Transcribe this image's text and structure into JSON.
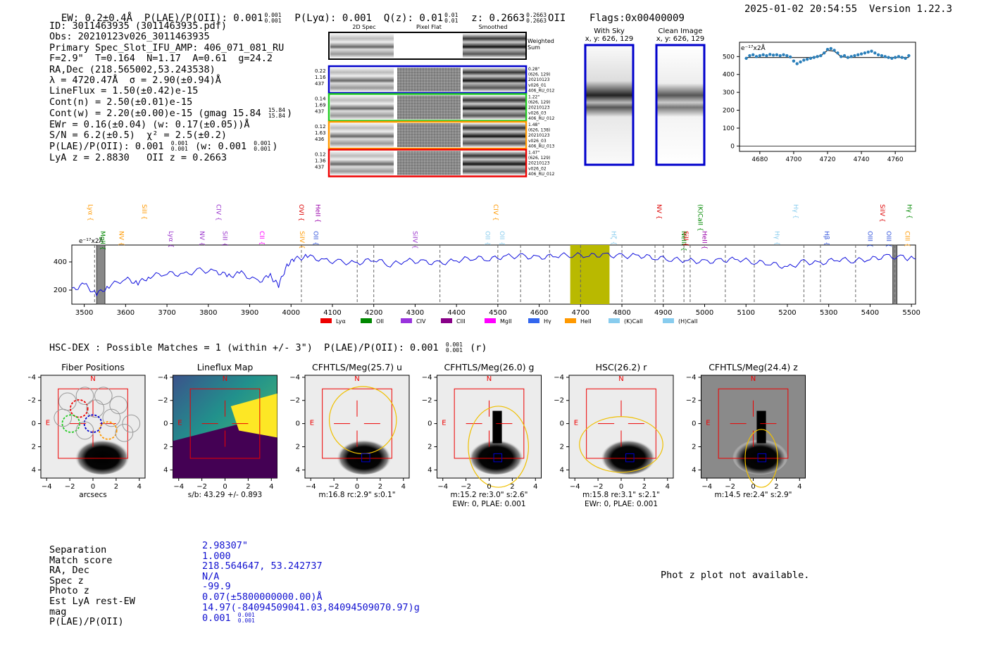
{
  "header": {
    "ew_label": "EW: 0.2±0.4Å",
    "plae_label": "P(LAE)/P(OII): 0.001",
    "plae_hi": "0.001",
    "plae_lo": "0.001",
    "plya_label": "P(Lyα): 0.001",
    "qz_label": "Q(z): 0.01",
    "qz_hi": "0.01",
    "qz_lo": "0.01",
    "z_label": "z: 0.2663",
    "z_hi": "0.2663",
    "z_lo": "0.2663",
    "z_line": "OII",
    "flags": "Flags:0x00400009",
    "datetime": "2025-01-02 20:54:55",
    "version": "Version 1.22.3"
  },
  "info": {
    "id": "ID: 3011463935 (3011463935.pdf)",
    "obs": "Obs: 20210123v026_3011463935",
    "primary": "Primary Spec_Slot_IFU_AMP: 406_071_081_RU",
    "fline": "F=2.9\"  T=0.164  N=1.17  A=0.61  g=24.2",
    "radec": "RA,Dec (218.565002,53.243538)",
    "lambda": "λ = 4720.47Å  σ = 2.90(±0.94)Å",
    "lineflux": "LineFlux = 1.50(±0.42)e-15",
    "contn": "Cont(n) = 2.50(±0.01)e-15",
    "contw": "Cont(w) = 2.20(±0.00)e-15 (gmag 15.84",
    "contw_hi": "15.84",
    "contw_lo": "15.84",
    "ewr": "EWr = 0.16(±0.04) (w: 0.17(±0.05))Å",
    "sn": "S/N = 6.2(±0.5)  χ² = 2.5(±0.2)",
    "plae": "P(LAE)/P(OII): 0.001",
    "plae_hi": "0.001",
    "plae_lo": "0.001",
    "plae_w": "(w: 0.001",
    "plae_w_hi": "0.001",
    "plae_w_lo": "0.001",
    "lyaz": "LyA z = 2.8830   OII z = 0.2663"
  },
  "cutouts": {
    "col_2d": "2D Spec",
    "col_flat": "Pixel Flat",
    "col_smooth": "Smoothed",
    "weighted_label": "Weighted",
    "weighted_label2": "Sum",
    "rows": [
      {
        "left": [
          "0.22",
          "1.16",
          "437"
        ],
        "right": [
          "0.28\"",
          "(626, 129)",
          "20210123",
          "v026_01",
          "406_RU_012"
        ],
        "color": "#0000cc"
      },
      {
        "left": [
          "0.14",
          "1.69",
          "437"
        ],
        "right": [
          "1.22\"",
          "(626, 129)",
          "20210123",
          "v026_03",
          "406_RU_012"
        ],
        "color": "#22cc22"
      },
      {
        "left": [
          "0.12",
          "1.63",
          "436"
        ],
        "right": [
          "1.48\"",
          "(626, 138)",
          "20210123",
          "v026_03",
          "406_RU_013"
        ],
        "color": "#ff9900"
      },
      {
        "left": [
          "0.12",
          "1.36",
          "437"
        ],
        "right": [
          "1.47\"",
          "(626, 129)",
          "20210123",
          "v026_02",
          "406_RU_012"
        ],
        "color": "#ee0000"
      }
    ],
    "with_sky": "With Sky",
    "with_sky_xy": "x, y: 626, 129",
    "clean": "Clean Image",
    "clean_xy": "x, y: 626, 129"
  },
  "chart_data": [
    {
      "type": "scatter",
      "title": "",
      "unit_label": "e⁻¹⁷x2Å",
      "xlim": [
        4668,
        4772
      ],
      "ylim": [
        -30,
        580
      ],
      "xticks": [
        4680,
        4700,
        4720,
        4740,
        4760
      ],
      "yticks": [
        0,
        100,
        200,
        300,
        400,
        500
      ],
      "x": [
        4672,
        4674,
        4676,
        4678,
        4680,
        4682,
        4684,
        4686,
        4688,
        4690,
        4692,
        4694,
        4696,
        4698,
        4700,
        4702,
        4704,
        4706,
        4708,
        4710,
        4712,
        4714,
        4716,
        4718,
        4720,
        4722,
        4724,
        4726,
        4728,
        4730,
        4732,
        4734,
        4736,
        4738,
        4740,
        4742,
        4744,
        4746,
        4748,
        4750,
        4752,
        4754,
        4756,
        4758,
        4760,
        4762,
        4764,
        4766,
        4768
      ],
      "y": [
        490,
        505,
        510,
        500,
        505,
        510,
        505,
        512,
        508,
        510,
        505,
        510,
        505,
        498,
        475,
        460,
        470,
        480,
        485,
        490,
        495,
        500,
        505,
        520,
        540,
        545,
        535,
        520,
        500,
        505,
        495,
        500,
        505,
        510,
        515,
        520,
        525,
        530,
        520,
        510,
        505,
        500,
        495,
        490,
        495,
        500,
        495,
        490,
        505
      ],
      "fit": [
        {
          "x": 4672,
          "y": 495
        },
        {
          "x": 4712,
          "y": 495
        },
        {
          "x": 4716,
          "y": 505
        },
        {
          "x": 4720,
          "y": 535
        },
        {
          "x": 4724,
          "y": 530
        },
        {
          "x": 4728,
          "y": 500
        },
        {
          "x": 4732,
          "y": 495
        },
        {
          "x": 4768,
          "y": 495
        }
      ]
    },
    {
      "type": "line",
      "title": "",
      "unit_label": "e⁻¹⁷x2Å",
      "xlim": [
        3470,
        5510
      ],
      "ylim": [
        100,
        520
      ],
      "xticks": [
        3500,
        3600,
        3700,
        3800,
        3900,
        4000,
        4100,
        4200,
        4300,
        4400,
        4500,
        4600,
        4700,
        4800,
        4900,
        5000,
        5100,
        5200,
        5300,
        5400,
        5500
      ],
      "yticks": [
        200,
        400
      ],
      "series": [
        {
          "x": [
            3470,
            3500,
            3530,
            3560,
            3600,
            3630,
            3660,
            3700,
            3740,
            3780,
            3820,
            3850,
            3880,
            3920,
            3950,
            3970,
            3990,
            4010,
            4040,
            4080,
            4120,
            4160,
            4200,
            4240,
            4280,
            4320,
            4360,
            4400,
            4440,
            4480,
            4520,
            4560,
            4600,
            4640,
            4680,
            4720,
            4760,
            4800,
            4840,
            4880,
            4920,
            4960,
            5000,
            5040,
            5080,
            5120,
            5160,
            5200,
            5240,
            5280,
            5320,
            5360,
            5400,
            5440,
            5480,
            5510
          ],
          "y": [
            200,
            240,
            170,
            230,
            280,
            250,
            300,
            320,
            310,
            340,
            330,
            300,
            320,
            260,
            300,
            230,
            380,
            420,
            440,
            410,
            400,
            390,
            420,
            380,
            410,
            400,
            390,
            410,
            430,
            420,
            440,
            440,
            430,
            445,
            450,
            445,
            450,
            440,
            445,
            430,
            420,
            410,
            400,
            410,
            420,
            400,
            390,
            360,
            400,
            390,
            420,
            410,
            420,
            440,
            430,
            420
          ]
        }
      ],
      "line_labels": [
        {
          "name": "Lyα",
          "x": 3510,
          "color": "#ff9900"
        },
        {
          "name": "MgII",
          "x": 3540,
          "color": "#008800"
        },
        {
          "name": "NV",
          "x": 3585,
          "color": "#ff9900"
        },
        {
          "name": "SiII",
          "x": 3640,
          "color": "#ff9900"
        },
        {
          "name": "Lyα",
          "x": 3705,
          "color": "#9933cc"
        },
        {
          "name": "NV",
          "x": 3780,
          "color": "#9933cc"
        },
        {
          "name": "CIV",
          "x": 3820,
          "color": "#9933cc"
        },
        {
          "name": "SiII",
          "x": 3835,
          "color": "#9933cc"
        },
        {
          "name": "CII",
          "x": 3925,
          "color": "#ff00ff"
        },
        {
          "name": "OVI",
          "x": 4020,
          "color": "#dd0000"
        },
        {
          "name": "SiIV",
          "x": 4022,
          "color": "#ff9900"
        },
        {
          "name": "OII",
          "x": 4055,
          "color": "#3355dd"
        },
        {
          "name": "HeII",
          "x": 4060,
          "color": "#9900aa"
        },
        {
          "name": "SiIV",
          "x": 4295,
          "color": "#9933cc"
        },
        {
          "name": "OII",
          "x": 4470,
          "color": "#88ccee"
        },
        {
          "name": "CIV",
          "x": 4490,
          "color": "#ff9900"
        },
        {
          "name": "OII",
          "x": 4505,
          "color": "#88ccee"
        },
        {
          "name": "Hζ",
          "x": 4775,
          "color": "#88ccee"
        },
        {
          "name": "NV",
          "x": 4885,
          "color": "#dd0000"
        },
        {
          "name": "NeIII",
          "x": 4945,
          "color": "#008800"
        },
        {
          "name": "SiII",
          "x": 4950,
          "color": "#dd0000"
        },
        {
          "name": "(K)CaII",
          "x": 4985,
          "color": "#008800"
        },
        {
          "name": "HeII",
          "x": 4995,
          "color": "#9900aa"
        },
        {
          "name": "Hγ",
          "x": 5170,
          "color": "#88ccee"
        },
        {
          "name": "Hγ",
          "x": 5215,
          "color": "#88ccee"
        },
        {
          "name": "Hβ",
          "x": 5290,
          "color": "#3355dd"
        },
        {
          "name": "OIII",
          "x": 5395,
          "color": "#3355dd"
        },
        {
          "name": "SiIV",
          "x": 5425,
          "color": "#dd0000"
        },
        {
          "name": "OIII",
          "x": 5440,
          "color": "#3355dd"
        },
        {
          "name": "CIII",
          "x": 5485,
          "color": "#ff9900"
        },
        {
          "name": "Hγ",
          "x": 5490,
          "color": "#008800"
        }
      ],
      "dashed_lines": [
        3525,
        4025,
        4160,
        4200,
        4360,
        4500,
        4555,
        4625,
        4700,
        4800,
        4880,
        4900,
        4950,
        4965,
        5050,
        5120,
        5240,
        5280,
        5365,
        5460
      ],
      "highlight": {
        "x0": 4675,
        "x1": 4770,
        "color": "#b9b900"
      },
      "legend": [
        {
          "name": "Lyα",
          "color": "#ee0000"
        },
        {
          "name": "OII",
          "color": "#008800"
        },
        {
          "name": "CIV",
          "color": "#9933dd"
        },
        {
          "name": "CIII",
          "color": "#880088"
        },
        {
          "name": "MgII",
          "color": "#ff00ff"
        },
        {
          "name": "Hγ",
          "color": "#3366ee"
        },
        {
          "name": "HeII",
          "color": "#ff9900"
        },
        {
          "name": "(K)CaII",
          "color": "#88ccee"
        },
        {
          "name": "(H)CaII",
          "color": "#88ccee"
        }
      ]
    }
  ],
  "hsc": {
    "title": "HSC-DEX : Possible Matches = 1 (within +/- 3\")  P(LAE)/P(OII): 0.001",
    "title_hi": "0.001",
    "title_lo": "0.001",
    "title_tail": "(r)",
    "panels": [
      {
        "title": "Fiber Positions",
        "cap1": "arcsecs",
        "cap2": ""
      },
      {
        "title": "Lineflux Map",
        "cap1": "s/b: 43.29 +/- 0.893",
        "cap2": ""
      },
      {
        "title": "CFHTLS/Meg(25.7) u",
        "cap1": "m:16.8 rc:2.9\"  s:0.1\"",
        "cap2": ""
      },
      {
        "title": "CFHTLS/Meg(26.0) g",
        "cap1": "m:15.2  re:3.0\"  s:2.6\"",
        "cap2": "EWr: 0, PLAE: 0.001"
      },
      {
        "title": "HSC(26.2) r",
        "cap1": "m:15.8  re:3.1\"  s:2.1\"",
        "cap2": "EWr: 0, PLAE: 0.001"
      },
      {
        "title": "CFHTLS/Meg(24.4) z",
        "cap1": "m:14.5  re:2.4\"  s:2.9\"",
        "cap2": ""
      }
    ],
    "axis_ticks": [
      "−4",
      "−2",
      "0",
      "2",
      "4"
    ],
    "n_label": "N",
    "e_label": "E"
  },
  "table": {
    "labels": [
      "Separation",
      "Match score",
      "RA, Dec",
      "Spec z",
      "Photo z",
      "Est LyA rest-EW",
      "mag",
      "P(LAE)/P(OII)"
    ],
    "values": [
      "2.98307\"",
      "1.000",
      "218.564647, 53.242737",
      "N/A",
      "-99.9",
      "0.07(±5800000000.00)Å",
      "14.97(-84094509041.03,84094509070.97)g",
      "0.001"
    ],
    "plae_hi": "0.001",
    "plae_lo": "0.001"
  },
  "photz": "Phot z plot not available."
}
